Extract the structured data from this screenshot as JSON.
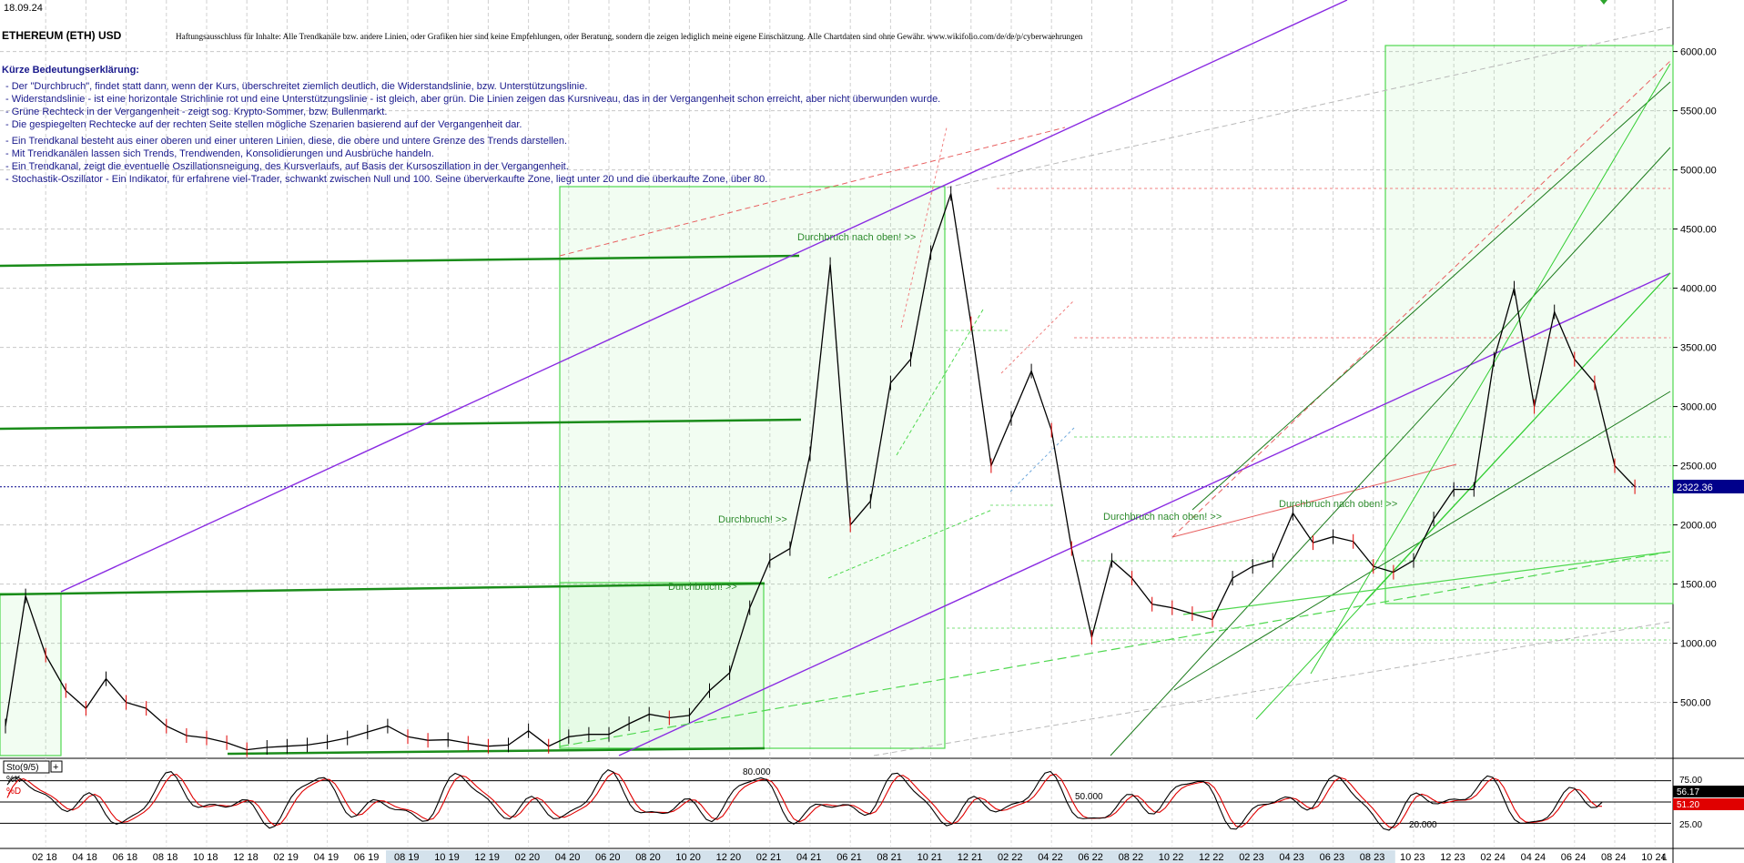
{
  "header": {
    "date": "18.09.24",
    "symbol": "ETHEREUM (ETH) USD",
    "disclaimer": "Haftungsausschluss für Inhalte: Alle Trendkanäle bzw. andere Linien, oder Grafiken hier sind keine Empfehlungen, oder Beratung, sondern die zeigen lediglich meine eigene Einschätzung. Alle Chartdaten sind ohne Gewähr.  www.wikifolio.com/de/de/p/cyberwaehrungen"
  },
  "legend": {
    "title": "Kürze Bedeutungserklärung:",
    "items": [
      "- Der \"Durchbruch\", findet statt dann, wenn der Kurs, überschreitet ziemlich deutlich, die Widerstandslinie, bzw. Unterstützungslinie.",
      "- Widerstandslinie - ist eine horizontale Strichlinie rot und eine Unterstützungslinie - ist gleich, aber grün. Die Linien zeigen das Kursniveau, das in der Vergangenheit schon erreicht, aber nicht überwunden wurde.",
      "- Grüne Rechteck in der Vergangenheit - zeigt sog. Krypto-Sommer, bzw. Bullenmarkt.",
      "- Die gespiegelten Rechtecke auf der rechten Seite stellen mögliche Szenarien basierend auf der Vergangenheit dar.",
      "- Ein Trendkanal besteht aus einer oberen und einer unteren Linien, diese, die obere und untere Grenze des Trends darstellen.",
      "- Mit Trendkanälen lassen sich Trends, Trendwenden, Konsolidierungen und Ausbrüche handeln.",
      "- Ein Trendkanal, zeigt die eventuelle Oszillationsneigung, des Kursverlaufs, auf Basis der Kursoszillation in der Vergangenheit.",
      "- Stochastik-Oszillator - Ein Indikator, für erfahrene viel-Trader, schwankt zwischen Null und 100. Seine überverkaufte Zone, liegt unter 20 und die überkaufte Zone, über 80."
    ]
  },
  "annotations": [
    {
      "text": "Durchbruch nach oben! >>",
      "x": "2021-06",
      "y": 4680
    },
    {
      "text": "Durchbruch! >>",
      "x": "2020-10",
      "y": 2000
    },
    {
      "text": "Durchbruch! >>",
      "x": "2020-06",
      "y": 1460
    },
    {
      "text": "Durchbruch nach oben! >>",
      "x": "2022-08",
      "y": 2030
    },
    {
      "text": "Durchbruch nach oben! >>",
      "x": "2023-04",
      "y": 2140
    }
  ],
  "price_axis": {
    "ticks": [
      "6000.00",
      "5500.00",
      "5000.00",
      "4500.00",
      "4000.00",
      "3500.00",
      "3000.00",
      "2500.00",
      "2000.00",
      "1500.00",
      "1000.00",
      "500.00"
    ],
    "current_label": "2322.36",
    "current_color": "#00008b"
  },
  "stochastic": {
    "label": "Sto(9/5)",
    "k_label": "%K",
    "d_label": "%D",
    "level_high": "80.000",
    "level_mid": "50.000",
    "level_low": "20.000",
    "axis_ticks": [
      "75.00",
      "25.00"
    ],
    "k_value": "56.17",
    "d_value": "51.20",
    "k_color": "#000000",
    "d_color": "#e00000"
  },
  "x_axis": {
    "labels": [
      "02 18",
      "04 18",
      "06 18",
      "08 18",
      "10 18",
      "12 18",
      "02 19",
      "04 19",
      "06 19",
      "08 19",
      "10 19",
      "12 19",
      "02 20",
      "04 20",
      "06 20",
      "08 20",
      "10 20",
      "12 20",
      "02 21",
      "04 21",
      "06 21",
      "08 21",
      "10 21",
      "12 21",
      "02 22",
      "04 22",
      "06 22",
      "08 22",
      "10 22",
      "12 22",
      "02 23",
      "04 23",
      "06 23",
      "08 23",
      "10 23",
      "12 23",
      "02 24",
      "04 24",
      "06 24",
      "08 24",
      "10 24"
    ],
    "corner": "L"
  },
  "chart_data": {
    "type": "line",
    "title": "ETHEREUM (ETH) USD",
    "xlabel": "",
    "ylabel": "",
    "ylim": [
      0,
      6300
    ],
    "x_range": [
      "2017-12",
      "2024-10"
    ],
    "grid": true,
    "series": [
      {
        "name": "ETHEREUM (ETH) USD",
        "color": "#000000",
        "x": [
          "2017-12",
          "2018-01",
          "2018-02",
          "2018-03",
          "2018-04",
          "2018-05",
          "2018-06",
          "2018-07",
          "2018-08",
          "2018-09",
          "2018-10",
          "2018-11",
          "2018-12",
          "2019-01",
          "2019-02",
          "2019-03",
          "2019-04",
          "2019-05",
          "2019-06",
          "2019-07",
          "2019-08",
          "2019-09",
          "2019-10",
          "2019-11",
          "2019-12",
          "2020-01",
          "2020-02",
          "2020-03",
          "2020-04",
          "2020-05",
          "2020-06",
          "2020-07",
          "2020-08",
          "2020-09",
          "2020-10",
          "2020-11",
          "2020-12",
          "2021-01",
          "2021-02",
          "2021-03",
          "2021-04",
          "2021-05",
          "2021-06",
          "2021-07",
          "2021-08",
          "2021-09",
          "2021-10",
          "2021-11",
          "2021-12",
          "2022-01",
          "2022-02",
          "2022-03",
          "2022-04",
          "2022-05",
          "2022-06",
          "2022-07",
          "2022-08",
          "2022-09",
          "2022-10",
          "2022-11",
          "2022-12",
          "2023-01",
          "2023-02",
          "2023-03",
          "2023-04",
          "2023-05",
          "2023-06",
          "2023-07",
          "2023-08",
          "2023-09",
          "2023-10",
          "2023-11",
          "2023-12",
          "2024-01",
          "2024-02",
          "2024-03",
          "2024-04",
          "2024-05",
          "2024-06",
          "2024-07",
          "2024-08",
          "2024-09"
        ],
        "values": [
          300,
          1400,
          900,
          600,
          450,
          700,
          500,
          450,
          300,
          220,
          200,
          160,
          100,
          120,
          130,
          140,
          165,
          200,
          250,
          300,
          210,
          180,
          185,
          155,
          130,
          140,
          260,
          130,
          210,
          230,
          230,
          320,
          400,
          370,
          390,
          600,
          750,
          1300,
          1700,
          1800,
          2600,
          4200,
          2000,
          2200,
          3200,
          3400,
          4300,
          4800,
          3700,
          2500,
          2900,
          3300,
          2800,
          1800,
          1050,
          1700,
          1550,
          1330,
          1300,
          1250,
          1200,
          1550,
          1650,
          1700,
          2100,
          1850,
          1900,
          1860,
          1650,
          1600,
          1700,
          2050,
          2300,
          2300,
          3400,
          4000,
          3000,
          3800,
          3400,
          3200,
          2500,
          2322
        ]
      },
      {
        "name": "%K",
        "color": "#000000",
        "values": [
          56.17
        ]
      },
      {
        "name": "%D",
        "color": "#e00000",
        "values": [
          51.2
        ]
      }
    ]
  }
}
